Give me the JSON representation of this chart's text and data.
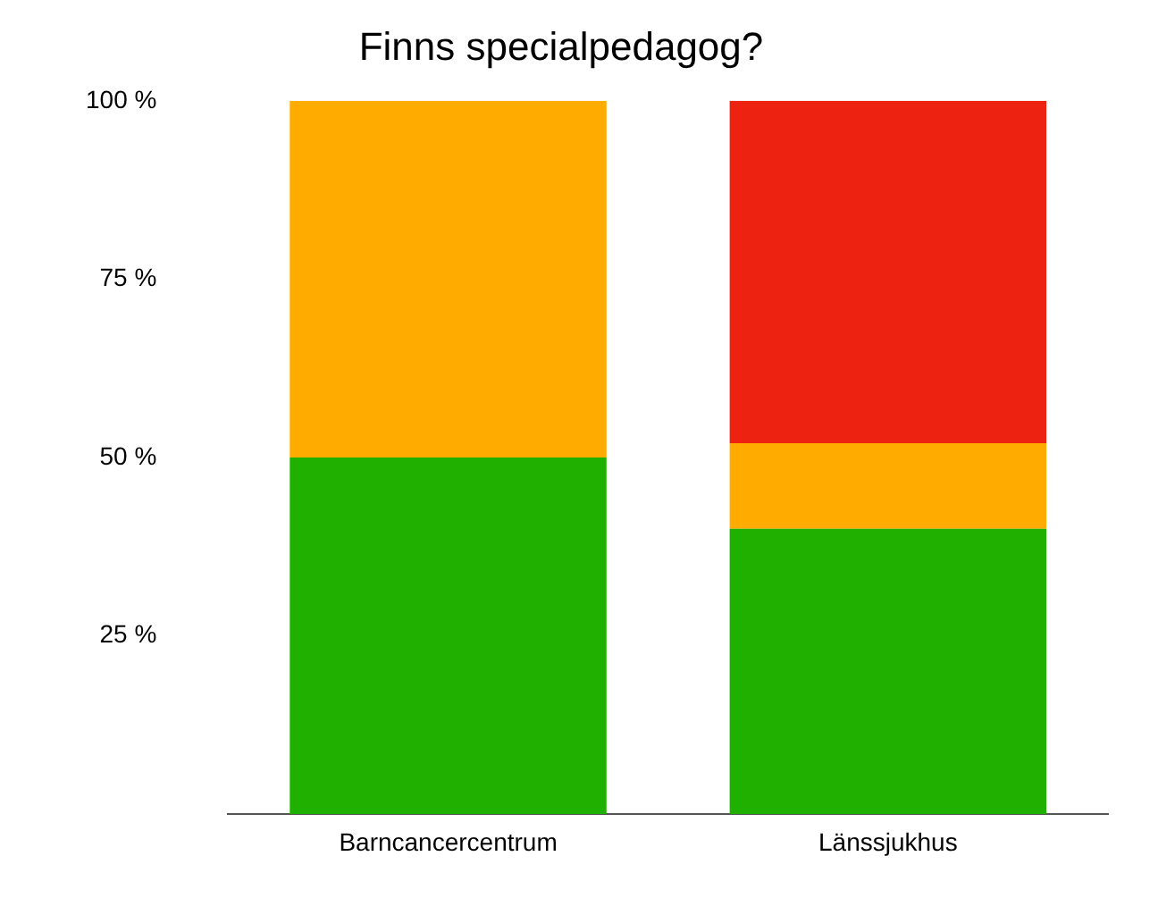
{
  "chart_data": {
    "type": "bar",
    "title": "Finns specialpedagog?",
    "categories": [
      "Barncancercentrum",
      "Länssjukhus"
    ],
    "stacked": true,
    "series": [
      {
        "color": "#1fb000",
        "values": [
          50,
          40
        ]
      },
      {
        "color": "#ffab00",
        "values": [
          50,
          12
        ]
      },
      {
        "color": "#ee2211",
        "values": [
          0,
          48
        ]
      }
    ],
    "ylim": [
      0,
      100
    ],
    "yticks": [
      {
        "value": 25,
        "label": "25 %"
      },
      {
        "value": 50,
        "label": "50 %"
      },
      {
        "value": 75,
        "label": "75 %"
      },
      {
        "value": 100,
        "label": "100 %"
      }
    ],
    "grid": false,
    "legend": false
  }
}
